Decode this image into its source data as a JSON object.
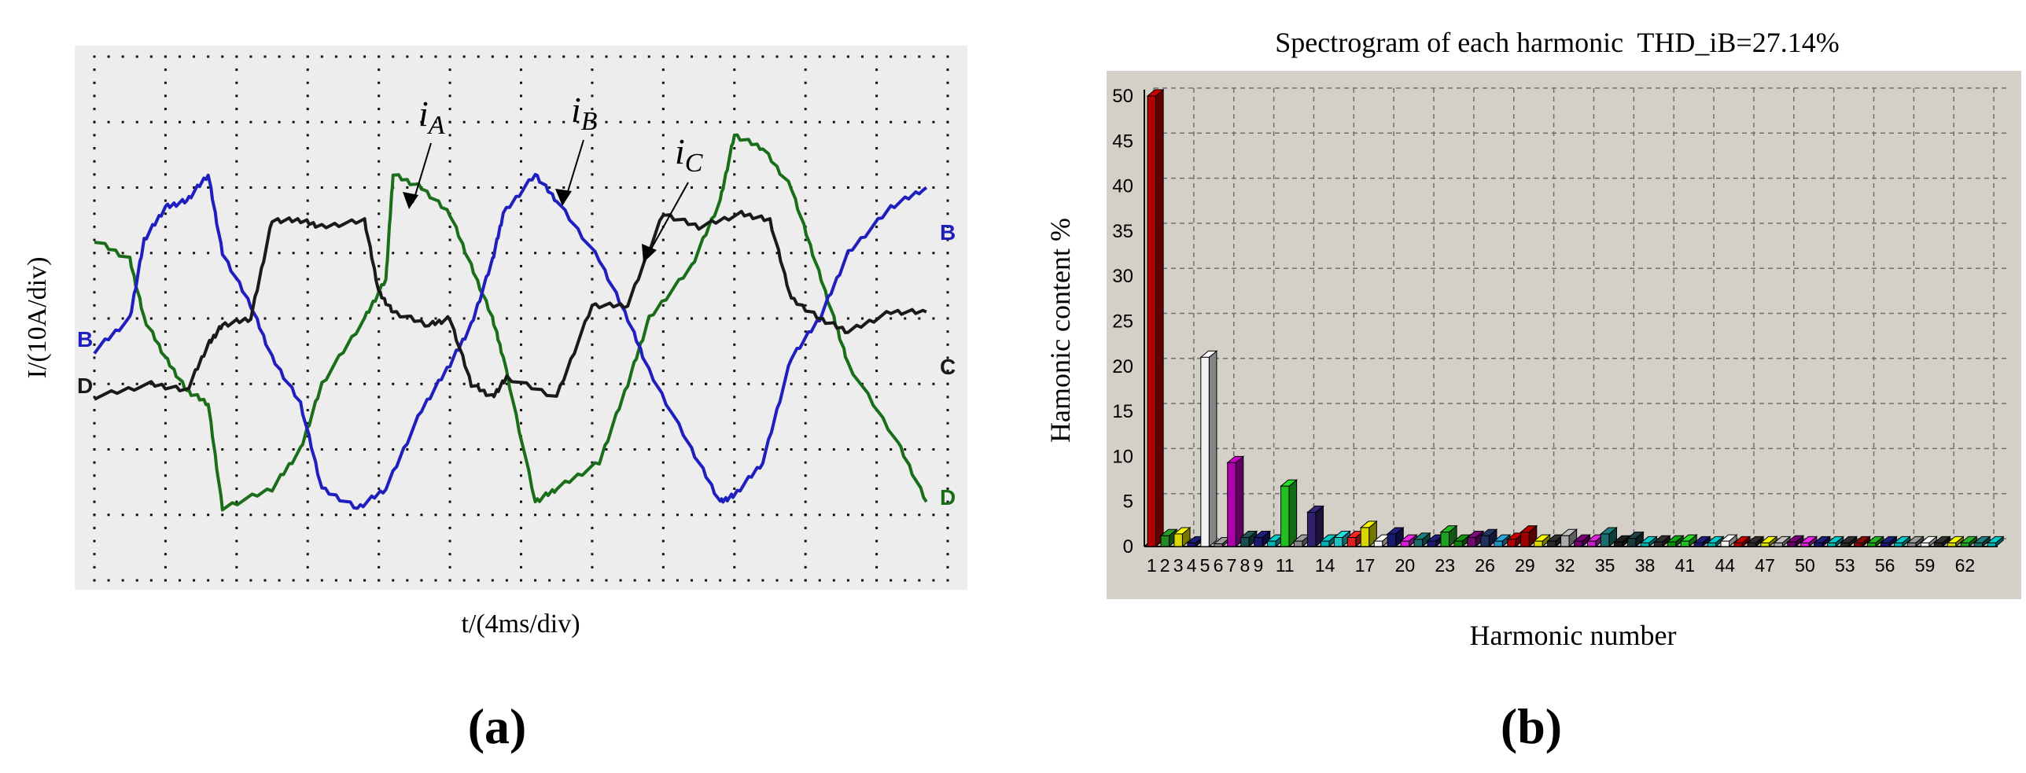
{
  "panels": [
    {
      "label": "(a)"
    },
    {
      "label": "(b)"
    }
  ],
  "chart_data": [
    {
      "type": "line",
      "xlabel": "t/(4ms/div)",
      "ylabel": "I/(10A/div)",
      "grid": true,
      "xlim": [
        0,
        12
      ],
      "ylim": [
        -4,
        4
      ],
      "channel_markers_left": [
        "B",
        "D"
      ],
      "channel_markers_right": [
        "B",
        "C",
        "D"
      ],
      "annotations": [
        {
          "base": "i",
          "sub": "A",
          "target_series": "iA"
        },
        {
          "base": "i",
          "sub": "B",
          "target_series": "iB"
        },
        {
          "base": "i",
          "sub": "C",
          "target_series": "iC"
        }
      ],
      "series": [
        {
          "name": "iA",
          "color": "#1a6e1a",
          "x": [
            0,
            0.5,
            0.7,
            1.0,
            1.3,
            1.6,
            1.8,
            2.5,
            2.9,
            3.2,
            3.8,
            4.1,
            4.2,
            4.6,
            5.0,
            5.3,
            5.6,
            5.75,
            6.2,
            6.5,
            7.1,
            7.5,
            7.8,
            8.4,
            8.8,
            9.0,
            9.4,
            9.8,
            10.1,
            10.4,
            10.6,
            11.3,
            11.7
          ],
          "y": [
            1.2,
            0.9,
            0.0,
            -0.6,
            -1.1,
            -1.3,
            -2.9,
            -2.6,
            -2.0,
            -1.0,
            0.0,
            0.6,
            2.2,
            2.0,
            1.6,
            0.8,
            0.0,
            -0.6,
            -2.8,
            -2.6,
            -2.2,
            -1.0,
            0.0,
            0.8,
            1.8,
            2.8,
            2.6,
            2.0,
            1.0,
            0.0,
            -0.7,
            -1.9,
            -2.8
          ]
        },
        {
          "name": "iB",
          "color": "#1f1fbf",
          "x": [
            0,
            0.5,
            0.7,
            1.0,
            1.3,
            1.6,
            1.8,
            2.2,
            2.5,
            2.9,
            3.2,
            3.7,
            4.1,
            4.6,
            5.0,
            5.3,
            5.6,
            5.75,
            6.2,
            6.5,
            7.1,
            7.5,
            7.8,
            8.4,
            8.8,
            9.0,
            9.4,
            9.8,
            10.2,
            10.6,
            11.2,
            11.7
          ],
          "y": [
            -0.5,
            0.0,
            1.2,
            1.7,
            1.8,
            2.2,
            1.0,
            0.2,
            -0.6,
            -1.3,
            -2.6,
            -2.9,
            -2.6,
            -1.4,
            -0.7,
            -0.1,
            0.9,
            1.6,
            2.2,
            1.8,
            0.9,
            0.0,
            -0.8,
            -2.0,
            -2.8,
            -2.7,
            -2.2,
            -0.6,
            0.0,
            1.0,
            1.7,
            2.0
          ]
        },
        {
          "name": "iC",
          "color": "#1a1a1a",
          "x": [
            0,
            0.8,
            1.3,
            1.6,
            1.8,
            2.2,
            2.5,
            2.9,
            3.2,
            3.8,
            4.0,
            4.2,
            4.7,
            5.0,
            5.3,
            5.6,
            5.8,
            6.5,
            7.0,
            7.5,
            8.0,
            8.5,
            9.1,
            9.5,
            9.8,
            10.2,
            10.6,
            11.2,
            11.7
          ],
          "y": [
            -1.2,
            -1.0,
            -1.1,
            -0.4,
            -0.1,
            0.0,
            1.5,
            1.5,
            1.4,
            1.5,
            0.4,
            0.1,
            -0.1,
            0.0,
            -1.0,
            -1.2,
            -0.9,
            -1.2,
            0.2,
            0.2,
            1.6,
            1.4,
            1.6,
            1.5,
            0.3,
            0.0,
            -0.2,
            0.1,
            0.1
          ]
        }
      ]
    },
    {
      "type": "bar",
      "title": "Spectrogram of each harmonic  THD_iB=27.14%",
      "xlabel": "Harmonic number",
      "ylabel": "Hamonic content %",
      "ylim": [
        0,
        50
      ],
      "yticks": [
        0,
        5,
        10,
        15,
        20,
        25,
        30,
        35,
        40,
        45,
        50
      ],
      "grid": true,
      "xtick_labels": [
        "1",
        "2",
        "3",
        "4",
        "5",
        "6",
        "7",
        "8",
        "9",
        "11",
        "14",
        "17",
        "20",
        "23",
        "26",
        "29",
        "32",
        "35",
        "38",
        "41",
        "44",
        "47",
        "50",
        "53",
        "56",
        "59",
        "62"
      ],
      "categories": [
        1,
        2,
        3,
        4,
        5,
        6,
        7,
        8,
        9,
        10,
        11,
        12,
        13,
        14,
        15,
        16,
        17,
        18,
        19,
        20,
        21,
        22,
        23,
        24,
        25,
        26,
        27,
        28,
        29,
        30,
        31,
        32,
        33,
        34,
        35,
        36,
        37,
        38,
        39,
        40,
        41,
        42,
        43,
        44,
        45,
        46,
        47,
        48,
        49,
        50,
        51,
        52,
        53,
        54,
        55,
        56,
        57,
        58,
        59,
        60,
        61,
        62,
        63,
        64
      ],
      "values": [
        50,
        1.2,
        1.4,
        0.4,
        21,
        0.3,
        9.3,
        1.0,
        1.0,
        0.6,
        6.7,
        0.6,
        3.8,
        0.6,
        1.0,
        1.0,
        2.1,
        0.6,
        1.4,
        0.6,
        0.8,
        0.6,
        1.6,
        0.6,
        1.0,
        1.2,
        0.6,
        0.8,
        1.6,
        0.6,
        0.6,
        1.2,
        0.6,
        0.6,
        1.4,
        0.5,
        0.9,
        0.4,
        0.5,
        0.5,
        0.6,
        0.4,
        0.4,
        0.6,
        0.4,
        0.4,
        0.4,
        0.4,
        0.5,
        0.4,
        0.4,
        0.4,
        0.4,
        0.4,
        0.4,
        0.4,
        0.4,
        0.4,
        0.4,
        0.4,
        0.4,
        0.4,
        0.4,
        0.4
      ],
      "bar_colors": [
        "#b00000",
        "#228b22",
        "#d8d800",
        "#1a1a6e",
        "#f2f2f2",
        "#888888",
        "#b000b0",
        "#1a4d4d",
        "#1a1a6e",
        "#00b0b0",
        "#20c020",
        "#888888",
        "#30206e",
        "#00b0b0",
        "#20c0c0",
        "#e02020",
        "#d8d800",
        "#f2f2f2",
        "#1a1a6e",
        "#d020d0",
        "#1a6e6e",
        "#1a1a6e",
        "#20a020",
        "#108010",
        "#6e0a6e",
        "#203060",
        "#2090c0",
        "#b00000",
        "#a00000",
        "#d8d800",
        "#2a2a2a",
        "#aaaaaa",
        "#6e006e",
        "#c020c0",
        "#1a6e6e",
        "#1a1a1a",
        "#1a3a3a",
        "#00b0b0",
        "#2a2a2a",
        "#109010",
        "#20c020",
        "#1a1a6e",
        "#00b0b0",
        "#f2f2f2",
        "#b00000",
        "#2a2a2a",
        "#d8d800",
        "#aaaaaa",
        "#6e006e",
        "#d020d0",
        "#1a1a6e",
        "#00b0b0",
        "#2a2a2a",
        "#7a0a0a",
        "#20a020",
        "#1a1a6e",
        "#00b0b0",
        "#888888",
        "#f2f2f2",
        "#2a2a2a",
        "#d8d800",
        "#20a020",
        "#1a6e6e",
        "#00b0b0"
      ]
    }
  ]
}
